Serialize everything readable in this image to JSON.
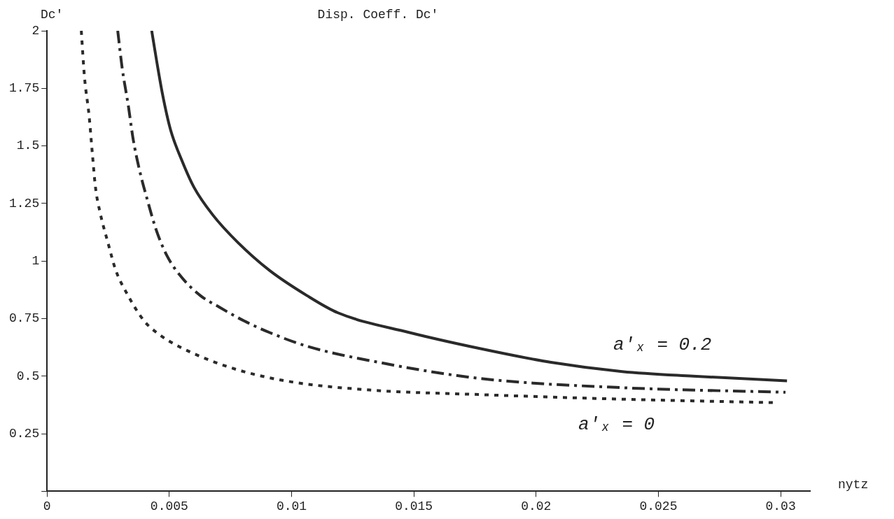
{
  "chart_data": {
    "type": "line",
    "title": "Disp. Coeff. Dc′",
    "xlabel": "nytz",
    "ylabel": "Dc′",
    "xlim": [
      0,
      0.0312
    ],
    "ylim": [
      0,
      2
    ],
    "xticks": [
      0,
      0.005,
      0.01,
      0.015,
      0.02,
      0.025,
      0.03
    ],
    "yticks": [
      {
        "value": 0,
        "label": null
      },
      0.25,
      0.5,
      0.75,
      1,
      1.25,
      1.5,
      1.75,
      2
    ],
    "grid": false,
    "legend": false,
    "marker": "none",
    "series": [
      {
        "color": "#2a2a2a",
        "line_style": "solid",
        "x": [
          0.00428,
          0.00448,
          0.00473,
          0.00505,
          0.0055,
          0.00601,
          0.00678,
          0.00781,
          0.00909,
          0.01063,
          0.0119,
          0.0148,
          0.0177,
          0.02061,
          0.02352,
          0.02642,
          0.03026
        ],
        "values": [
          2,
          1.87,
          1.72,
          1.57,
          1.44,
          1.32,
          1.2,
          1.08,
          0.96,
          0.85,
          0.775,
          0.69,
          0.62,
          0.56,
          0.52,
          0.5,
          0.48
        ]
      },
      {
        "color": "#2a2a2a",
        "line_style": "dashed",
        "x": [
          0.00289,
          0.00307,
          0.00333,
          0.00352,
          0.00377,
          0.00409,
          0.00448,
          0.00492,
          0.0055,
          0.00627,
          0.00704,
          0.00806,
          0.00909,
          0.01063,
          0.01357,
          0.0177,
          0.02352,
          0.0302
        ],
        "values": [
          2,
          1.84,
          1.67,
          1.53,
          1.4,
          1.27,
          1.13,
          1.02,
          0.93,
          0.85,
          0.8,
          0.74,
          0.69,
          0.63,
          0.56,
          0.49,
          0.45,
          0.43
        ]
      },
      {
        "color": "#2a2a2a",
        "line_style": "dotted",
        "x": [
          0.0014,
          0.00153,
          0.00172,
          0.00185,
          0.00198,
          0.00217,
          0.00249,
          0.00281,
          0.00326,
          0.00397,
          0.0046,
          0.00537,
          0.00742,
          0.00973,
          0.01319,
          0.0177,
          0.02352,
          0.02977
        ],
        "values": [
          2,
          1.8,
          1.63,
          1.47,
          1.32,
          1.21,
          1.08,
          0.96,
          0.86,
          0.74,
          0.68,
          0.63,
          0.54,
          0.48,
          0.44,
          0.42,
          0.4,
          0.385
        ]
      }
    ],
    "annotations": [
      "a′ₓ = 0.2",
      "a′ₓ = 0"
    ]
  }
}
